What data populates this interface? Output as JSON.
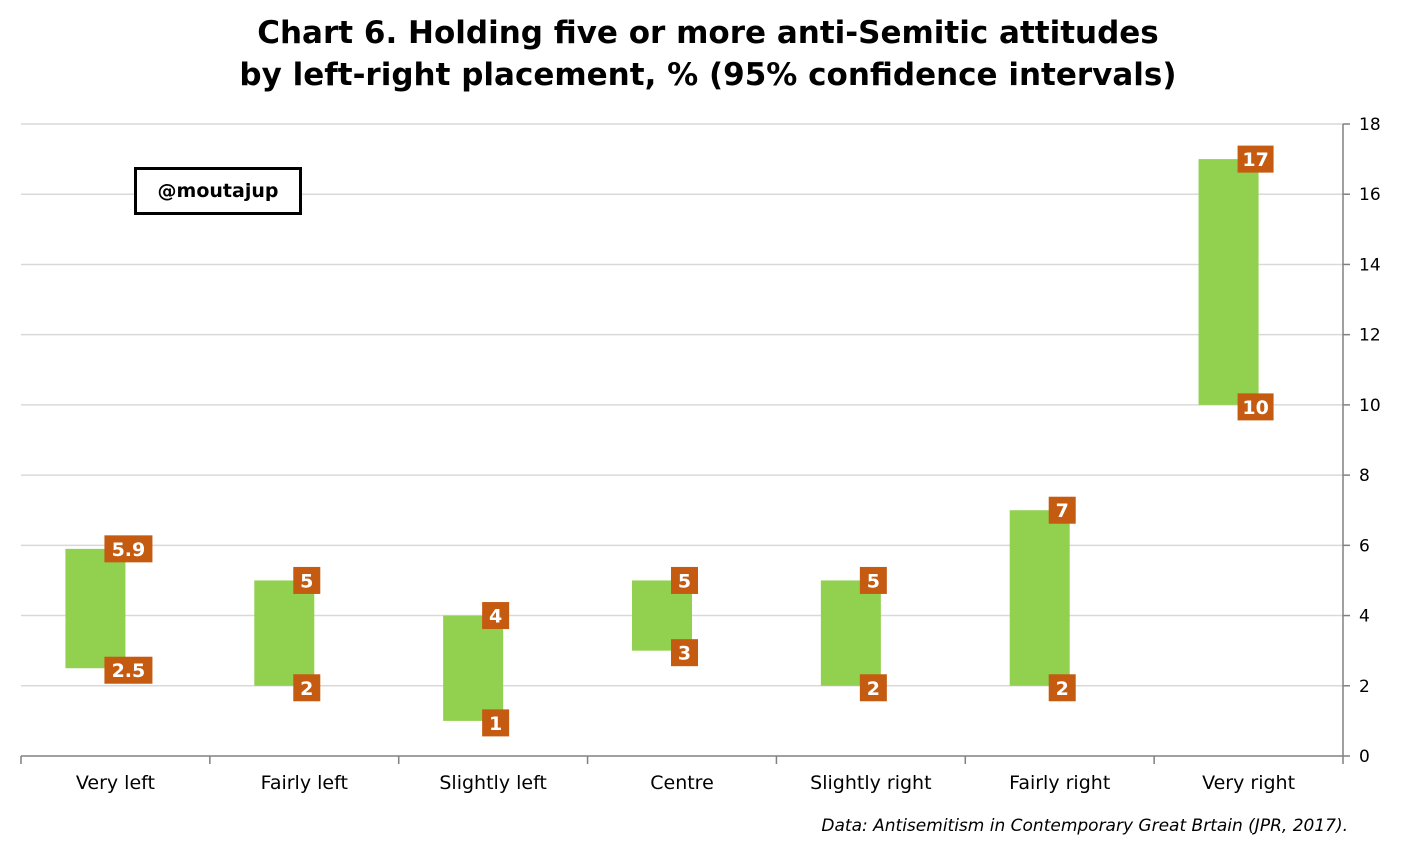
{
  "chart_data": {
    "type": "bar",
    "subtype": "floating-range",
    "title_lines": [
      "Chart 6. Holding five or more anti-Semitic attitudes",
      "by left-right placement, % (95% confidence intervals)"
    ],
    "categories": [
      "Very left",
      "Fairly left",
      "Slightly left",
      "Centre",
      "Slightly right",
      "Fairly right",
      "Very right"
    ],
    "low": [
      2.5,
      2,
      1,
      3,
      2,
      2,
      10
    ],
    "high": [
      5.9,
      5,
      4,
      5,
      5,
      7,
      17
    ],
    "low_labels": [
      "2.5",
      "2",
      "1",
      "3",
      "2",
      "2",
      "10"
    ],
    "high_labels": [
      "5.9",
      "5",
      "4",
      "5",
      "5",
      "7",
      "17"
    ],
    "ylim": [
      0,
      18
    ],
    "yticks": [
      0,
      2,
      4,
      6,
      8,
      10,
      12,
      14,
      16,
      18
    ],
    "y_axis_side": "right",
    "grid": true,
    "bar_color": "#92D050",
    "label_color": "#C55A11",
    "label_text_color": "#FFFFFF",
    "gridline_color": "#D9D9D9",
    "axis_color": "#808080"
  },
  "watermark": "@moutajup",
  "source": "Data: Antisemitism in Contemporary Great Brtain (JPR, 2017)."
}
